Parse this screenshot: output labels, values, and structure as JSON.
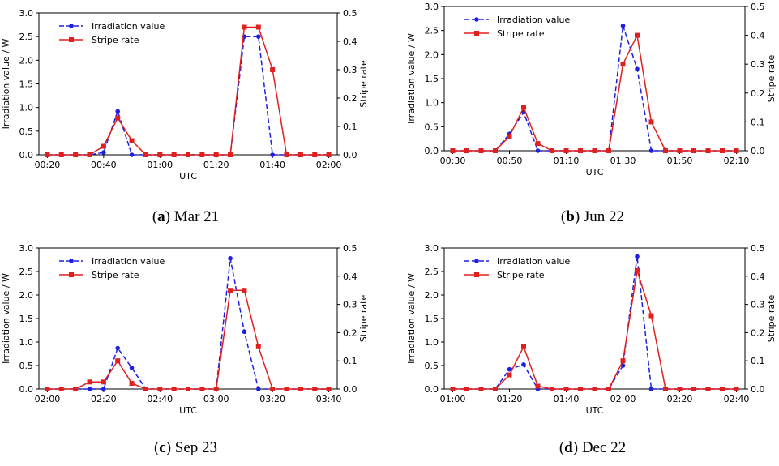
{
  "chart_data": [
    {
      "type": "line",
      "caption_letter": "a",
      "caption_text": "Mar 21",
      "xlabel": "UTC",
      "ylabel": "Irradiation value / W",
      "y2label": "Stripe rate",
      "ylim": [
        0,
        3.0
      ],
      "y2lim": [
        0,
        0.5
      ],
      "yticks": [
        "0.0",
        "0.5",
        "1.0",
        "1.5",
        "2.0",
        "2.5",
        "3.0"
      ],
      "y2ticks": [
        "0.0",
        "0.1",
        "0.2",
        "0.3",
        "0.4",
        "0.5"
      ],
      "x_start_minutes": 20,
      "x_step_minutes": 5,
      "xticks": [
        {
          "at": 20,
          "label": "00:20"
        },
        {
          "at": 40,
          "label": "00:40"
        },
        {
          "at": 60,
          "label": "01:00"
        },
        {
          "at": 80,
          "label": "01:20"
        },
        {
          "at": 100,
          "label": "01:40"
        },
        {
          "at": 120,
          "label": "02:00"
        }
      ],
      "xlim": [
        17,
        123
      ],
      "legend": "upper-left",
      "series": [
        {
          "name": "Irradiation value",
          "axis": "left",
          "color": "#1f1fe0",
          "style": "dashed",
          "marker": "circle",
          "values": [
            0,
            0,
            0,
            0,
            0.05,
            0.92,
            0,
            0,
            0,
            0,
            0,
            0,
            0,
            0,
            2.5,
            2.5,
            0,
            0,
            0,
            0,
            0
          ]
        },
        {
          "name": "Stripe rate",
          "axis": "right",
          "color": "#e01f1f",
          "style": "solid",
          "marker": "square",
          "values": [
            0,
            0,
            0,
            0,
            0.03,
            0.13,
            0.05,
            0,
            0,
            0,
            0,
            0,
            0,
            0,
            0.45,
            0.45,
            0.3,
            0,
            0,
            0,
            0
          ]
        }
      ]
    },
    {
      "type": "line",
      "caption_letter": "b",
      "caption_text": "Jun 22",
      "xlabel": "UTC",
      "ylabel": "Irradiation value / W",
      "y2label": "Stripe rate",
      "ylim": [
        0,
        3.0
      ],
      "y2lim": [
        0,
        0.5
      ],
      "yticks": [
        "0.0",
        "0.5",
        "1.0",
        "1.5",
        "2.0",
        "2.5",
        "3.0"
      ],
      "y2ticks": [
        "0.0",
        "0.1",
        "0.2",
        "0.3",
        "0.4",
        "0.5"
      ],
      "x_start_minutes": 30,
      "x_step_minutes": 5,
      "xticks": [
        {
          "at": 30,
          "label": "00:30"
        },
        {
          "at": 50,
          "label": "00:50"
        },
        {
          "at": 70,
          "label": "01:10"
        },
        {
          "at": 90,
          "label": "01:30"
        },
        {
          "at": 110,
          "label": "01:50"
        },
        {
          "at": 130,
          "label": "02:10"
        }
      ],
      "xlim": [
        27,
        133
      ],
      "legend": "upper-left",
      "series": [
        {
          "name": "Irradiation value",
          "axis": "left",
          "color": "#1f1fe0",
          "style": "dashed",
          "marker": "circle",
          "values": [
            0,
            0,
            0,
            0,
            0.35,
            0.8,
            0,
            0,
            0,
            0,
            0,
            0,
            2.6,
            1.7,
            0,
            0,
            0,
            0,
            0,
            0,
            0
          ]
        },
        {
          "name": "Stripe rate",
          "axis": "right",
          "color": "#e01f1f",
          "style": "solid",
          "marker": "square",
          "values": [
            0,
            0,
            0,
            0,
            0.05,
            0.15,
            0.025,
            0,
            0,
            0,
            0,
            0,
            0.3,
            0.4,
            0.1,
            0,
            0,
            0,
            0,
            0,
            0
          ]
        }
      ]
    },
    {
      "type": "line",
      "caption_letter": "c",
      "caption_text": "Sep 23",
      "xlabel": "UTC",
      "ylabel": "Irradiation value / W",
      "y2label": "Stripe rate",
      "ylim": [
        0,
        3.0
      ],
      "y2lim": [
        0,
        0.5
      ],
      "yticks": [
        "0.0",
        "0.5",
        "1.0",
        "1.5",
        "2.0",
        "2.5",
        "3.0"
      ],
      "y2ticks": [
        "0.0",
        "0.1",
        "0.2",
        "0.3",
        "0.4",
        "0.5"
      ],
      "x_start_minutes": 120,
      "x_step_minutes": 5,
      "xticks": [
        {
          "at": 120,
          "label": "02:00"
        },
        {
          "at": 140,
          "label": "02:20"
        },
        {
          "at": 160,
          "label": "02:40"
        },
        {
          "at": 180,
          "label": "03:00"
        },
        {
          "at": 200,
          "label": "03:20"
        },
        {
          "at": 220,
          "label": "03:40"
        }
      ],
      "xlim": [
        117,
        223
      ],
      "legend": "upper-left",
      "series": [
        {
          "name": "Irradiation value",
          "axis": "left",
          "color": "#1f1fe0",
          "style": "dashed",
          "marker": "circle",
          "values": [
            0,
            0,
            0,
            0,
            0,
            0.87,
            0.45,
            0,
            0,
            0,
            0,
            0,
            0,
            2.78,
            1.22,
            0,
            0,
            0,
            0,
            0,
            0
          ]
        },
        {
          "name": "Stripe rate",
          "axis": "right",
          "color": "#e01f1f",
          "style": "solid",
          "marker": "square",
          "values": [
            0,
            0,
            0,
            0.025,
            0.025,
            0.1,
            0.02,
            0,
            0,
            0,
            0,
            0,
            0,
            0.35,
            0.35,
            0.15,
            0,
            0,
            0,
            0,
            0
          ]
        }
      ]
    },
    {
      "type": "line",
      "caption_letter": "d",
      "caption_text": "Dec 22",
      "xlabel": "UTC",
      "ylabel": "Irradiation value / W",
      "y2label": "Stripe rate",
      "ylim": [
        0,
        3.0
      ],
      "y2lim": [
        0,
        0.5
      ],
      "yticks": [
        "0.0",
        "0.5",
        "1.0",
        "1.5",
        "2.0",
        "2.5",
        "3.0"
      ],
      "y2ticks": [
        "0.0",
        "0.1",
        "0.2",
        "0.3",
        "0.4",
        "0.5"
      ],
      "x_start_minutes": 60,
      "x_step_minutes": 5,
      "xticks": [
        {
          "at": 60,
          "label": "01:00"
        },
        {
          "at": 80,
          "label": "01:20"
        },
        {
          "at": 100,
          "label": "01:40"
        },
        {
          "at": 120,
          "label": "02:00"
        },
        {
          "at": 140,
          "label": "02:20"
        },
        {
          "at": 160,
          "label": "02:40"
        }
      ],
      "xlim": [
        57,
        163
      ],
      "legend": "upper-left",
      "series": [
        {
          "name": "Irradiation value",
          "axis": "left",
          "color": "#1f1fe0",
          "style": "dashed",
          "marker": "circle",
          "values": [
            0,
            0,
            0,
            0,
            0.42,
            0.52,
            0,
            0,
            0,
            0,
            0,
            0,
            0.5,
            2.82,
            0,
            0,
            0,
            0,
            0,
            0,
            0
          ]
        },
        {
          "name": "Stripe rate",
          "axis": "right",
          "color": "#e01f1f",
          "style": "solid",
          "marker": "square",
          "values": [
            0,
            0,
            0,
            0,
            0.05,
            0.15,
            0.01,
            0,
            0,
            0,
            0,
            0,
            0.1,
            0.42,
            0.26,
            0,
            0,
            0,
            0,
            0,
            0
          ]
        }
      ]
    }
  ]
}
